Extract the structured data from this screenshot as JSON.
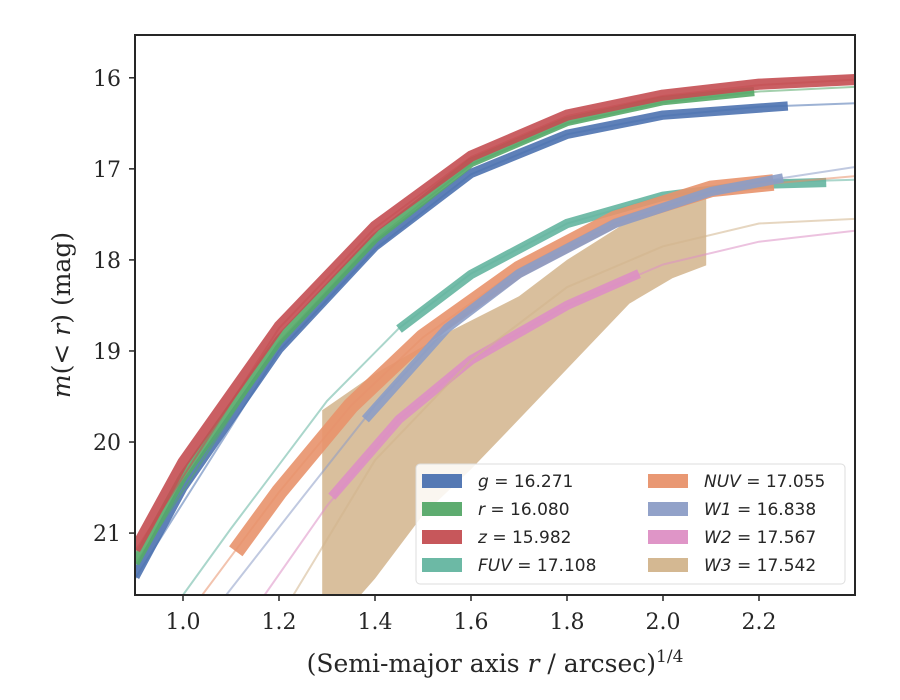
{
  "chart_data": {
    "type": "line",
    "xlabel": "(Semi-major axis r / arcsec)^1/4",
    "ylabel": "m(< r) (mag)",
    "xlim": [
      0.9,
      2.4
    ],
    "ylim": [
      21.68,
      15.53
    ],
    "y_inverted": true,
    "grid": false,
    "legend_position": "lower-right",
    "legend_columns": 2,
    "xticks": [
      {
        "value": 1.0,
        "label": "1.0"
      },
      {
        "value": 1.2,
        "label": "1.2"
      },
      {
        "value": 1.4,
        "label": "1.4"
      },
      {
        "value": 1.6,
        "label": "1.6"
      },
      {
        "value": 1.8,
        "label": "1.8"
      },
      {
        "value": 2.0,
        "label": "2.0"
      },
      {
        "value": 2.2,
        "label": "2.2"
      }
    ],
    "yticks": [
      {
        "value": 16,
        "label": "16"
      },
      {
        "value": 17,
        "label": "17"
      },
      {
        "value": 18,
        "label": "18"
      },
      {
        "value": 19,
        "label": "19"
      },
      {
        "value": 20,
        "label": "20"
      },
      {
        "value": 21,
        "label": "21"
      }
    ],
    "series": [
      {
        "id": "g",
        "name": "g",
        "value": "16.271",
        "color": "#4c72b0",
        "extrapolation": [
          [
            0.9,
            21.5
          ],
          [
            1.2,
            19.0
          ],
          [
            1.4,
            17.88
          ],
          [
            1.6,
            17.06
          ],
          [
            1.8,
            16.62
          ],
          [
            2.0,
            16.42
          ],
          [
            2.2,
            16.32
          ],
          [
            2.4,
            16.28
          ]
        ],
        "measured": [
          [
            0.9,
            21.48
          ],
          [
            1.0,
            20.5
          ],
          [
            1.2,
            18.98
          ],
          [
            1.4,
            17.85
          ],
          [
            1.6,
            17.05
          ],
          [
            1.8,
            16.62
          ],
          [
            2.0,
            16.41
          ],
          [
            2.26,
            16.31
          ]
        ],
        "band": 0.04
      },
      {
        "id": "r",
        "name": "r",
        "value": "16.080",
        "color": "#55a868",
        "extrapolation": [
          [
            0.9,
            21.35
          ],
          [
            1.2,
            18.9
          ],
          [
            1.4,
            17.78
          ],
          [
            1.6,
            16.95
          ],
          [
            1.8,
            16.5
          ],
          [
            2.0,
            16.27
          ],
          [
            2.2,
            16.15
          ],
          [
            2.4,
            16.1
          ]
        ],
        "measured": [
          [
            0.9,
            21.33
          ],
          [
            1.0,
            20.38
          ],
          [
            1.2,
            18.88
          ],
          [
            1.4,
            17.76
          ],
          [
            1.6,
            16.93
          ],
          [
            1.8,
            16.48
          ],
          [
            2.0,
            16.25
          ],
          [
            2.19,
            16.15
          ]
        ],
        "band": 0.04
      },
      {
        "id": "z",
        "name": "z",
        "value": "15.982",
        "color": "#c44e52",
        "extrapolation": [
          [
            0.9,
            21.2
          ],
          [
            1.2,
            18.75
          ],
          [
            1.4,
            17.65
          ],
          [
            1.6,
            16.87
          ],
          [
            1.8,
            16.42
          ],
          [
            2.0,
            16.2
          ],
          [
            2.2,
            16.08
          ],
          [
            2.4,
            16.02
          ]
        ],
        "measured": [
          [
            0.9,
            21.18
          ],
          [
            1.0,
            20.22
          ],
          [
            1.2,
            18.73
          ],
          [
            1.4,
            17.63
          ],
          [
            1.6,
            16.86
          ],
          [
            1.8,
            16.41
          ],
          [
            2.0,
            16.19
          ],
          [
            2.2,
            16.07
          ],
          [
            2.4,
            16.02
          ]
        ],
        "band": 0.05
      },
      {
        "id": "FUV",
        "name": "FUV",
        "value": "17.108",
        "color": "#64b5a0",
        "extrapolation": [
          [
            1.0,
            21.68
          ],
          [
            1.1,
            20.95
          ],
          [
            1.2,
            20.25
          ],
          [
            1.3,
            19.55
          ],
          [
            1.45,
            18.75
          ],
          [
            1.6,
            18.15
          ],
          [
            1.8,
            17.6
          ],
          [
            2.0,
            17.3
          ],
          [
            2.2,
            17.15
          ],
          [
            2.4,
            17.12
          ]
        ],
        "measured": [
          [
            1.45,
            18.76
          ],
          [
            1.6,
            18.16
          ],
          [
            1.8,
            17.6
          ],
          [
            2.0,
            17.3
          ],
          [
            2.2,
            17.17
          ],
          [
            2.34,
            17.15
          ]
        ],
        "band": 0.04
      },
      {
        "id": "NUV",
        "name": "NUV",
        "value": "17.055",
        "color": "#e8926c",
        "extrapolation": [
          [
            1.04,
            21.68
          ],
          [
            1.2,
            20.55
          ],
          [
            1.35,
            19.6
          ],
          [
            1.5,
            18.85
          ],
          [
            1.7,
            18.1
          ],
          [
            1.9,
            17.55
          ],
          [
            2.1,
            17.22
          ],
          [
            2.4,
            17.08
          ]
        ],
        "measured": [
          [
            1.11,
            21.2
          ],
          [
            1.2,
            20.55
          ],
          [
            1.35,
            19.6
          ],
          [
            1.5,
            18.85
          ],
          [
            1.7,
            18.1
          ],
          [
            1.9,
            17.55
          ],
          [
            2.1,
            17.22
          ],
          [
            2.23,
            17.15
          ]
        ],
        "band": 0.08
      },
      {
        "id": "W1",
        "name": "W1",
        "value": "16.838",
        "color": "#8c9dc6",
        "extrapolation": [
          [
            1.09,
            21.68
          ],
          [
            1.25,
            20.6
          ],
          [
            1.4,
            19.6
          ],
          [
            1.55,
            18.75
          ],
          [
            1.7,
            18.15
          ],
          [
            1.9,
            17.6
          ],
          [
            2.1,
            17.25
          ],
          [
            2.25,
            17.1
          ],
          [
            2.4,
            16.98
          ]
        ],
        "measured": [
          [
            1.38,
            19.75
          ],
          [
            1.55,
            18.75
          ],
          [
            1.7,
            18.15
          ],
          [
            1.9,
            17.6
          ],
          [
            2.1,
            17.25
          ],
          [
            2.25,
            17.1
          ]
        ],
        "band": 0.04
      },
      {
        "id": "W2",
        "name": "W2",
        "value": "17.567",
        "color": "#dd8fc4",
        "extrapolation": [
          [
            1.17,
            21.68
          ],
          [
            1.3,
            20.7
          ],
          [
            1.45,
            19.75
          ],
          [
            1.6,
            19.1
          ],
          [
            1.8,
            18.5
          ],
          [
            2.0,
            18.05
          ],
          [
            2.2,
            17.8
          ],
          [
            2.4,
            17.68
          ]
        ],
        "measured": [
          [
            1.31,
            20.6
          ],
          [
            1.45,
            19.75
          ],
          [
            1.6,
            19.1
          ],
          [
            1.8,
            18.5
          ],
          [
            1.95,
            18.15
          ]
        ],
        "band": 0.04
      },
      {
        "id": "W3",
        "name": "W3",
        "value": "17.542",
        "color": "#d2b48c",
        "extrapolation": [
          [
            1.23,
            21.68
          ],
          [
            1.4,
            20.2
          ],
          [
            1.6,
            19.1
          ],
          [
            1.8,
            18.3
          ],
          [
            2.0,
            17.85
          ],
          [
            2.2,
            17.6
          ],
          [
            2.4,
            17.55
          ]
        ],
        "measured": [],
        "band": 0,
        "band_polygon": [
          [
            1.29,
            21.68
          ],
          [
            1.29,
            19.65
          ],
          [
            1.4,
            19.25
          ],
          [
            1.55,
            18.8
          ],
          [
            1.7,
            18.4
          ],
          [
            1.8,
            18.0
          ],
          [
            1.92,
            17.6
          ],
          [
            2.09,
            17.25
          ],
          [
            2.09,
            18.06
          ],
          [
            2.02,
            18.2
          ],
          [
            1.93,
            18.48
          ],
          [
            1.7,
            19.75
          ],
          [
            1.6,
            20.3
          ],
          [
            1.5,
            20.8
          ],
          [
            1.4,
            21.5
          ],
          [
            1.37,
            21.68
          ]
        ]
      }
    ],
    "legend": [
      {
        "series": "g",
        "label": "g = 16.271"
      },
      {
        "series": "NUV",
        "label": "NUV = 17.055"
      },
      {
        "series": "r",
        "label": "r = 16.080"
      },
      {
        "series": "W1",
        "label": "W1 = 16.838"
      },
      {
        "series": "z",
        "label": "z = 15.982"
      },
      {
        "series": "W2",
        "label": "W2 = 17.567"
      },
      {
        "series": "FUV",
        "label": "FUV = 17.108"
      },
      {
        "series": "W3",
        "label": "W3 = 17.542"
      }
    ]
  }
}
